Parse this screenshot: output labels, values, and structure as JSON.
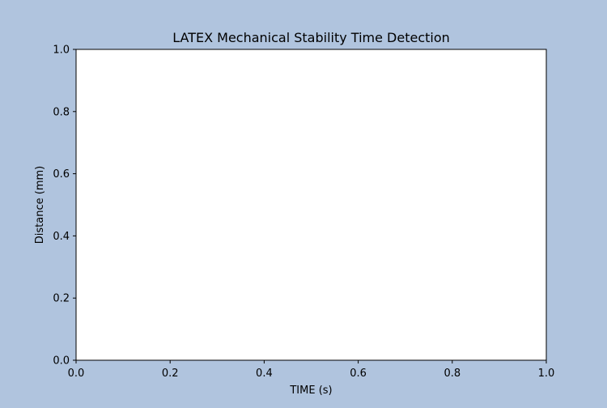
{
  "chart_data": {
    "type": "line",
    "title": "LATEX Mechanical Stability Time Detection",
    "xlabel": "TIME (s)",
    "ylabel": "Distance (mm)",
    "xlim": [
      0.0,
      1.0
    ],
    "ylim": [
      0.0,
      1.0
    ],
    "x_ticks": [
      "0.0",
      "0.2",
      "0.4",
      "0.6",
      "0.8",
      "1.0"
    ],
    "y_ticks": [
      "0.0",
      "0.2",
      "0.4",
      "0.6",
      "0.8",
      "1.0"
    ],
    "grid": false,
    "series": []
  },
  "colors": {
    "figure_background": "#b0c4de",
    "plot_background": "#ffffff",
    "axis": "#000000"
  }
}
